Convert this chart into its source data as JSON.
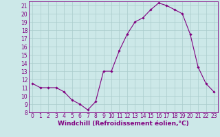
{
  "hours": [
    0,
    1,
    2,
    3,
    4,
    5,
    6,
    7,
    8,
    9,
    10,
    11,
    12,
    13,
    14,
    15,
    16,
    17,
    18,
    19,
    20,
    21,
    22,
    23
  ],
  "temps": [
    11.5,
    11.0,
    11.0,
    11.0,
    10.5,
    9.5,
    9.0,
    8.3,
    9.3,
    13.0,
    13.0,
    15.5,
    17.5,
    19.0,
    19.5,
    20.5,
    21.3,
    21.0,
    20.5,
    20.0,
    17.5,
    13.5,
    11.5,
    10.5
  ],
  "line_color": "#800080",
  "marker": "D",
  "marker_size": 1.8,
  "line_width": 0.8,
  "xlabel": "Windchill (Refroidissement éolien,°C)",
  "xlim": [
    -0.5,
    23.5
  ],
  "ylim": [
    8,
    21.5
  ],
  "yticks": [
    8,
    9,
    10,
    11,
    12,
    13,
    14,
    15,
    16,
    17,
    18,
    19,
    20,
    21
  ],
  "xticks": [
    0,
    1,
    2,
    3,
    4,
    5,
    6,
    7,
    8,
    9,
    10,
    11,
    12,
    13,
    14,
    15,
    16,
    17,
    18,
    19,
    20,
    21,
    22,
    23
  ],
  "bg_color": "#cce8e8",
  "grid_color": "#aacccc",
  "xlabel_fontsize": 6.5,
  "tick_fontsize": 5.5,
  "line_purple": "#800080",
  "xlabel_bg": "#800080",
  "xlabel_fg": "#ffffff"
}
